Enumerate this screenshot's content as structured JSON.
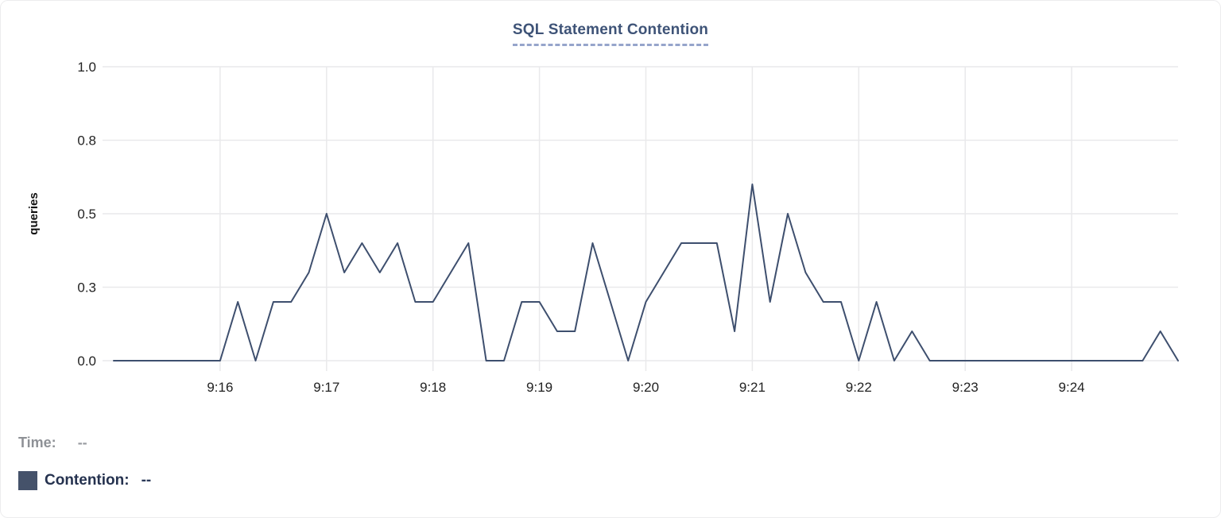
{
  "chart_data": {
    "type": "line",
    "title": "SQL Statement Contention",
    "xlabel": "",
    "ylabel": "queries",
    "ylim": [
      0,
      1
    ],
    "grid": true,
    "legend_position": "bottom-left",
    "y_ticks": [
      {
        "value": 0.0,
        "label": "0.0"
      },
      {
        "value": 0.25,
        "label": "0.3"
      },
      {
        "value": 0.5,
        "label": "0.5"
      },
      {
        "value": 0.75,
        "label": "0.8"
      },
      {
        "value": 1.0,
        "label": "1.0"
      }
    ],
    "x_ticks": [
      {
        "time": "9:16",
        "seconds": 60
      },
      {
        "time": "9:17",
        "seconds": 120
      },
      {
        "time": "9:18",
        "seconds": 180
      },
      {
        "time": "9:19",
        "seconds": 240
      },
      {
        "time": "9:20",
        "seconds": 300
      },
      {
        "time": "9:21",
        "seconds": 360
      },
      {
        "time": "9:22",
        "seconds": 420
      },
      {
        "time": "9:23",
        "seconds": 480
      },
      {
        "time": "9:24",
        "seconds": 540
      }
    ],
    "series": [
      {
        "name": "Contention",
        "color": "#3e4f6e",
        "points": [
          {
            "t": "9:15:00",
            "v": 0
          },
          {
            "t": "9:15:10",
            "v": 0
          },
          {
            "t": "9:15:20",
            "v": 0
          },
          {
            "t": "9:15:30",
            "v": 0
          },
          {
            "t": "9:15:40",
            "v": 0
          },
          {
            "t": "9:15:50",
            "v": 0
          },
          {
            "t": "9:16:00",
            "v": 0
          },
          {
            "t": "9:16:10",
            "v": 0.2
          },
          {
            "t": "9:16:20",
            "v": 0
          },
          {
            "t": "9:16:30",
            "v": 0.2
          },
          {
            "t": "9:16:40",
            "v": 0.2
          },
          {
            "t": "9:16:50",
            "v": 0.3
          },
          {
            "t": "9:17:00",
            "v": 0.5
          },
          {
            "t": "9:17:10",
            "v": 0.3
          },
          {
            "t": "9:17:20",
            "v": 0.4
          },
          {
            "t": "9:17:30",
            "v": 0.3
          },
          {
            "t": "9:17:40",
            "v": 0.4
          },
          {
            "t": "9:17:50",
            "v": 0.2
          },
          {
            "t": "9:18:00",
            "v": 0.2
          },
          {
            "t": "9:18:10",
            "v": 0.3
          },
          {
            "t": "9:18:20",
            "v": 0.4
          },
          {
            "t": "9:18:30",
            "v": 0
          },
          {
            "t": "9:18:40",
            "v": 0
          },
          {
            "t": "9:18:50",
            "v": 0.2
          },
          {
            "t": "9:19:00",
            "v": 0.2
          },
          {
            "t": "9:19:10",
            "v": 0.1
          },
          {
            "t": "9:19:20",
            "v": 0.1
          },
          {
            "t": "9:19:30",
            "v": 0.4
          },
          {
            "t": "9:19:40",
            "v": 0.2
          },
          {
            "t": "9:19:50",
            "v": 0
          },
          {
            "t": "9:20:00",
            "v": 0.2
          },
          {
            "t": "9:20:10",
            "v": 0.3
          },
          {
            "t": "9:20:20",
            "v": 0.4
          },
          {
            "t": "9:20:30",
            "v": 0.4
          },
          {
            "t": "9:20:40",
            "v": 0.4
          },
          {
            "t": "9:20:50",
            "v": 0.1
          },
          {
            "t": "9:21:00",
            "v": 0.6
          },
          {
            "t": "9:21:10",
            "v": 0.2
          },
          {
            "t": "9:21:20",
            "v": 0.5
          },
          {
            "t": "9:21:30",
            "v": 0.3
          },
          {
            "t": "9:21:40",
            "v": 0.2
          },
          {
            "t": "9:21:50",
            "v": 0.2
          },
          {
            "t": "9:22:00",
            "v": 0
          },
          {
            "t": "9:22:10",
            "v": 0.2
          },
          {
            "t": "9:22:20",
            "v": 0
          },
          {
            "t": "9:22:30",
            "v": 0.1
          },
          {
            "t": "9:22:40",
            "v": 0
          },
          {
            "t": "9:22:50",
            "v": 0
          },
          {
            "t": "9:23:00",
            "v": 0
          },
          {
            "t": "9:23:10",
            "v": 0
          },
          {
            "t": "9:23:20",
            "v": 0
          },
          {
            "t": "9:23:30",
            "v": 0
          },
          {
            "t": "9:23:40",
            "v": 0
          },
          {
            "t": "9:23:50",
            "v": 0
          },
          {
            "t": "9:24:00",
            "v": 0
          },
          {
            "t": "9:24:10",
            "v": 0
          },
          {
            "t": "9:24:20",
            "v": 0
          },
          {
            "t": "9:24:30",
            "v": 0
          },
          {
            "t": "9:24:40",
            "v": 0
          },
          {
            "t": "9:24:50",
            "v": 0.1
          },
          {
            "t": "9:25:00",
            "v": 0
          }
        ]
      }
    ]
  },
  "tooltip_legend": {
    "time_label": "Time:",
    "time_value": "--",
    "contention_label": "Contention:",
    "contention_value": "--"
  },
  "colors": {
    "line": "#3e4f6e",
    "grid": "#e9e9eb",
    "tick_text": "#222222",
    "title_text": "#3e5377",
    "title_underline": "#96a5cb",
    "legend_muted": "#8e9196",
    "legend_strong": "#25324f",
    "swatch": "#45526a"
  }
}
